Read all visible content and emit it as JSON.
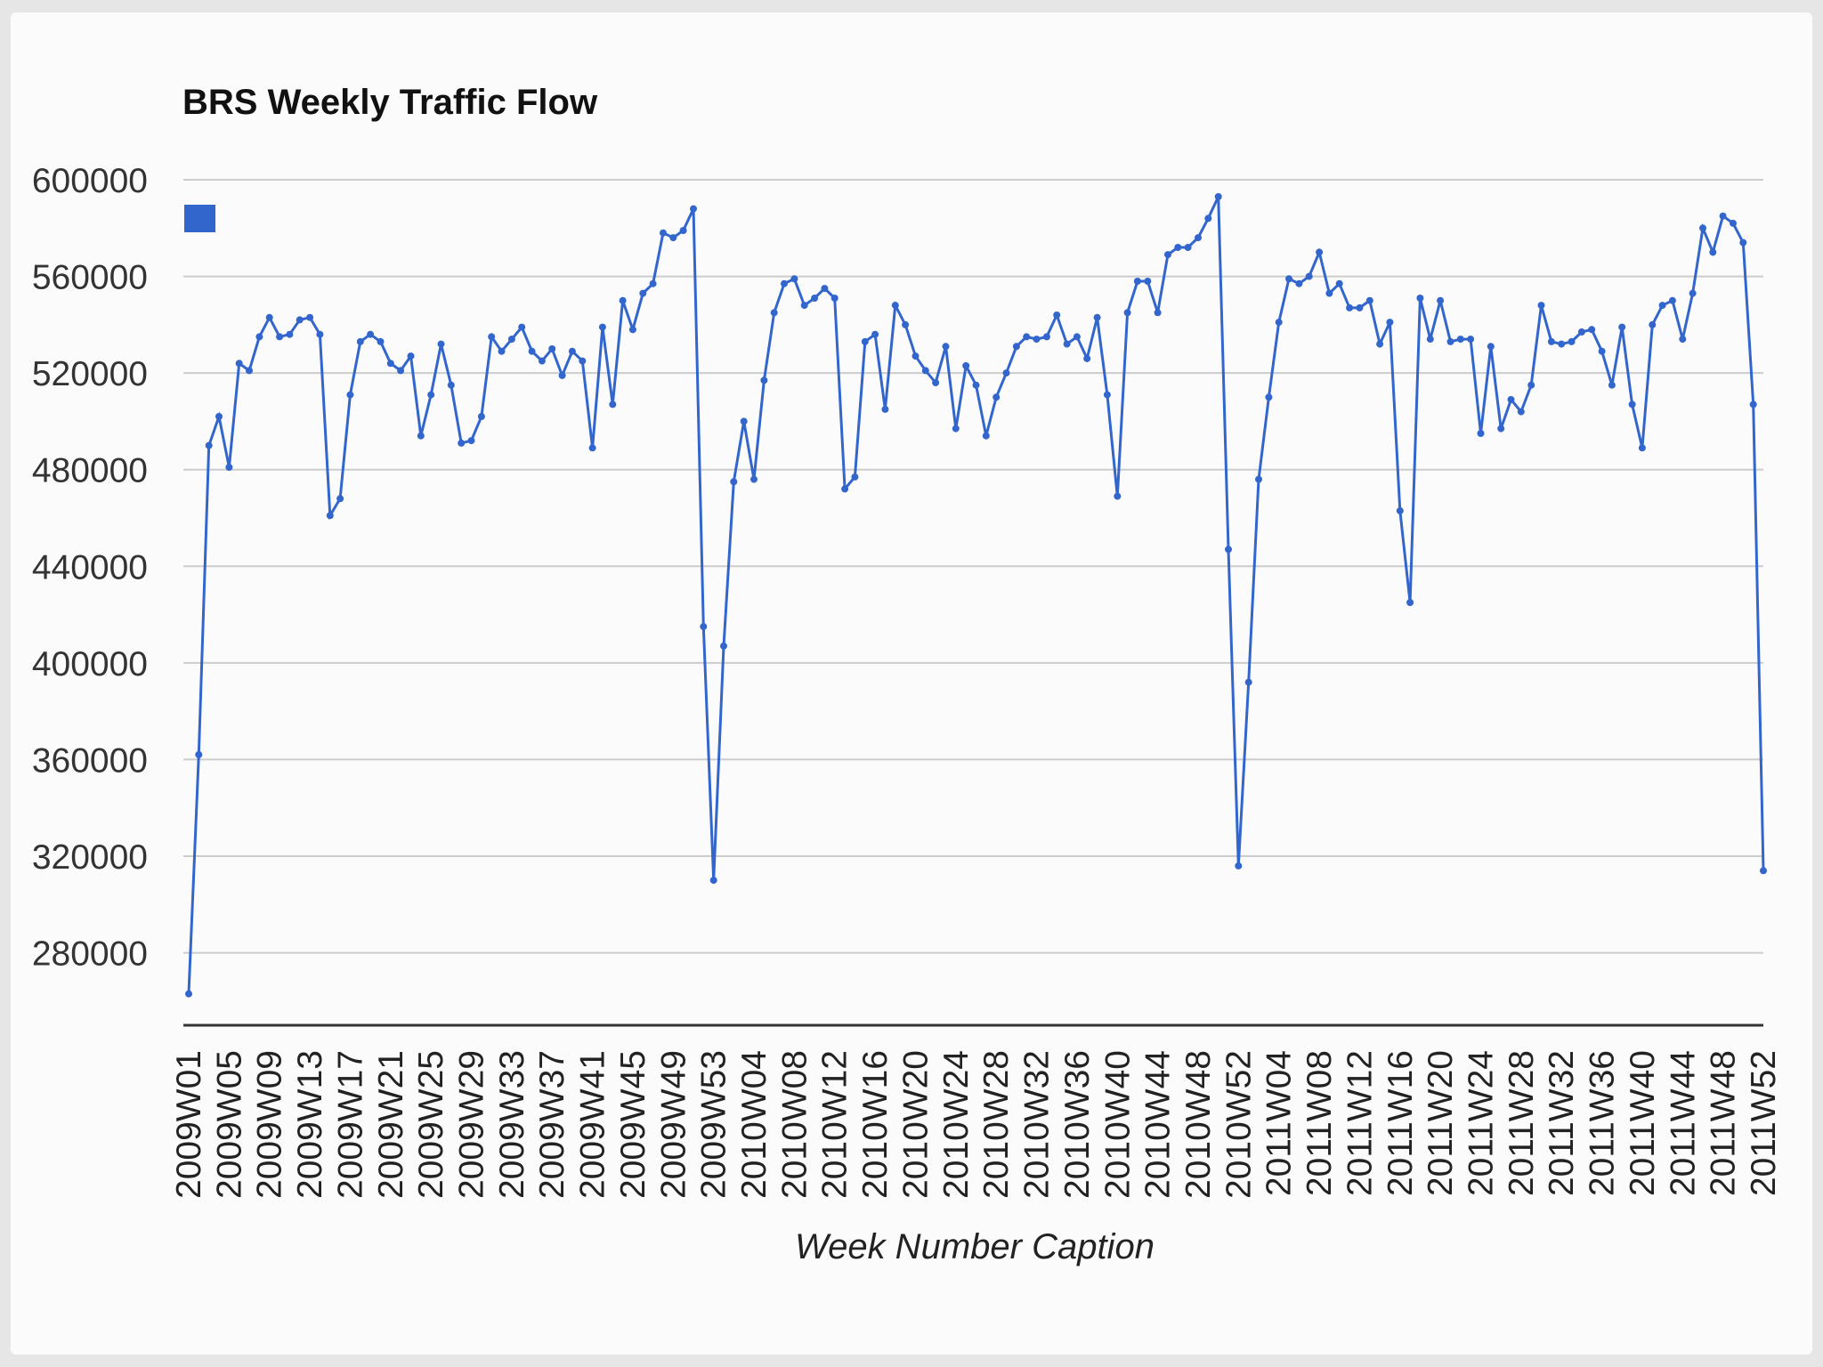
{
  "chart_data": {
    "type": "line",
    "title": "BRS Weekly Traffic Flow",
    "xlabel": "Week Number Caption",
    "ylabel": "",
    "ylim": [
      250000,
      600000
    ],
    "yticks": [
      280000,
      320000,
      360000,
      400000,
      440000,
      480000,
      520000,
      560000,
      600000
    ],
    "ytick_labels": [
      "280000",
      "320000",
      "360000",
      "400000",
      "440000",
      "480000",
      "520000",
      "560000",
      "600000"
    ],
    "xtick_labels": [
      "2009W01",
      "2009W05",
      "2009W09",
      "2009W13",
      "2009W17",
      "2009W21",
      "2009W25",
      "2009W29",
      "2009W33",
      "2009W37",
      "2009W41",
      "2009W45",
      "2009W49",
      "2009W53",
      "2010W04",
      "2010W08",
      "2010W12",
      "2010W16",
      "2010W20",
      "2010W24",
      "2010W28",
      "2010W32",
      "2010W36",
      "2010W40",
      "2010W44",
      "2010W48",
      "2010W52",
      "2011W04",
      "2011W08",
      "2011W12",
      "2011W16",
      "2011W20",
      "2011W24",
      "2011W28",
      "2011W32",
      "2011W36",
      "2011W40",
      "2011W44",
      "2011W48",
      "2011W52"
    ],
    "grid": true,
    "legend": "left",
    "series": [
      {
        "color": "#3366cc",
        "values": [
          263000,
          362000,
          490000,
          502000,
          481000,
          524000,
          521000,
          535000,
          543000,
          535000,
          536000,
          542000,
          543000,
          536000,
          461000,
          468000,
          511000,
          533000,
          536000,
          533000,
          524000,
          521000,
          527000,
          494000,
          511000,
          532000,
          515000,
          491000,
          492000,
          502000,
          535000,
          529000,
          534000,
          539000,
          529000,
          525000,
          530000,
          519000,
          529000,
          525000,
          489000,
          539000,
          507000,
          550000,
          538000,
          553000,
          557000,
          578000,
          576000,
          579000,
          588000,
          415000,
          310000,
          407000,
          475000,
          500000,
          476000,
          517000,
          545000,
          557000,
          559000,
          548000,
          551000,
          555000,
          551000,
          472000,
          477000,
          533000,
          536000,
          505000,
          548000,
          540000,
          527000,
          521000,
          516000,
          531000,
          497000,
          523000,
          515000,
          494000,
          510000,
          520000,
          531000,
          535000,
          534000,
          535000,
          544000,
          532000,
          535000,
          526000,
          543000,
          511000,
          469000,
          545000,
          558000,
          558000,
          545000,
          569000,
          572000,
          572000,
          576000,
          584000,
          593000,
          447000,
          316000,
          392000,
          476000,
          510000,
          541000,
          559000,
          557000,
          560000,
          570000,
          553000,
          557000,
          547000,
          547000,
          550000,
          532000,
          541000,
          463000,
          425000,
          551000,
          534000,
          550000,
          533000,
          534000,
          534000,
          495000,
          531000,
          497000,
          509000,
          504000,
          515000,
          548000,
          533000,
          532000,
          533000,
          537000,
          538000,
          529000,
          515000,
          539000,
          507000,
          489000,
          540000,
          548000,
          550000,
          534000,
          553000,
          580000,
          570000,
          585000,
          582000,
          574000,
          507000,
          314000
        ]
      }
    ]
  }
}
